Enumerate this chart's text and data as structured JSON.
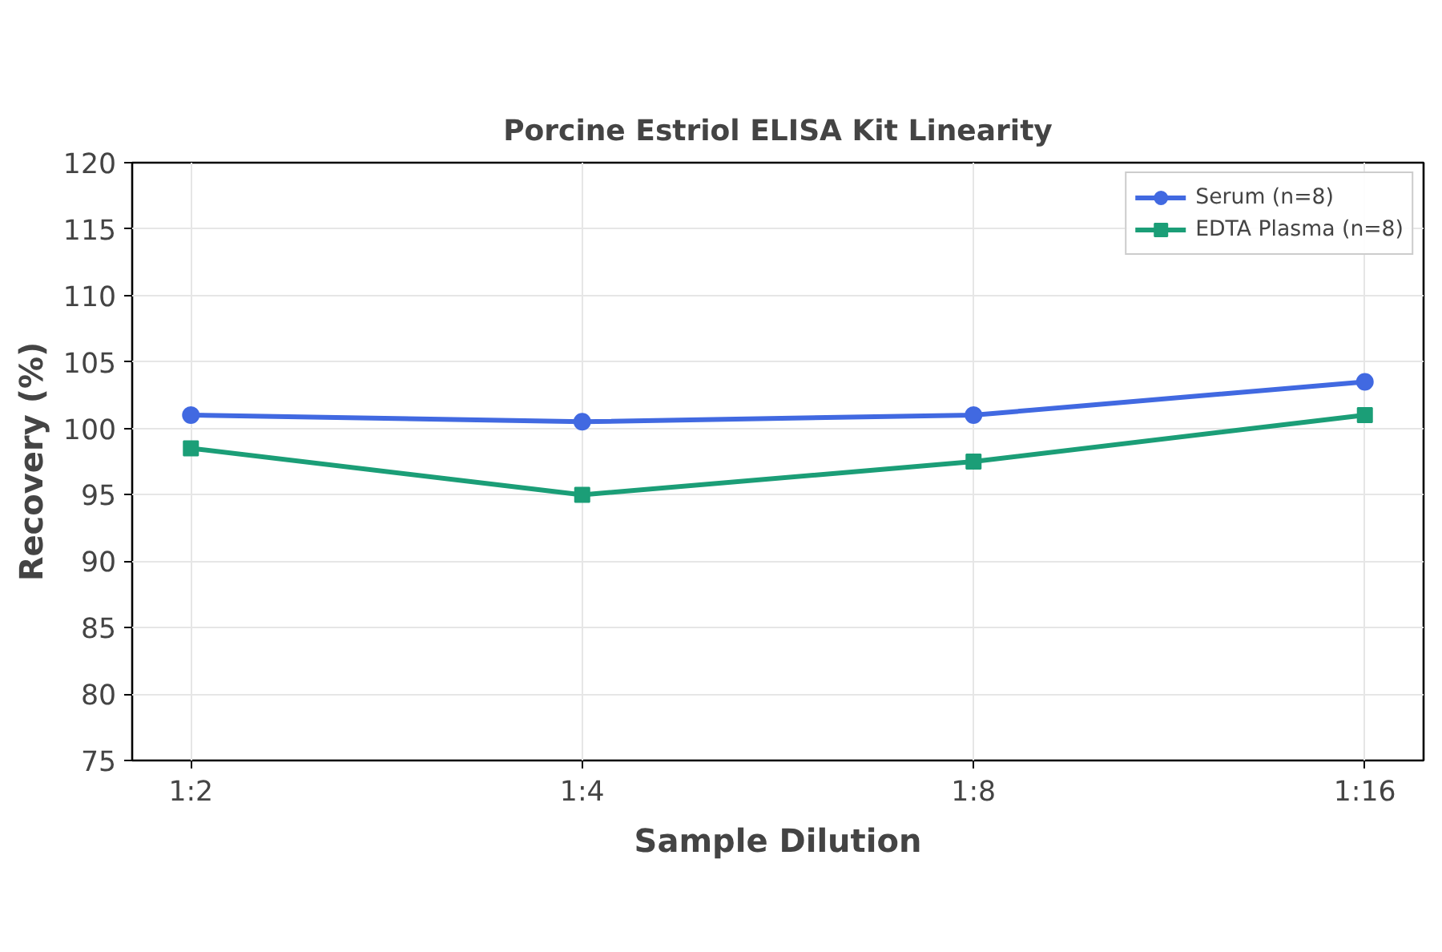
{
  "chart_data": {
    "type": "line",
    "title": "Porcine Estriol ELISA Kit Linearity",
    "xlabel": "Sample Dilution",
    "ylabel": "Recovery (%)",
    "categories": [
      "1:2",
      "1:4",
      "1:8",
      "1:16"
    ],
    "series": [
      {
        "name": "Serum (n=8)",
        "color": "#4169e1",
        "marker": "circle",
        "values": [
          101,
          100.5,
          101,
          103.5
        ]
      },
      {
        "name": "EDTA Plasma (n=8)",
        "color": "#1b9e77",
        "marker": "square",
        "values": [
          98.5,
          95,
          97.5,
          101
        ]
      }
    ],
    "ylim": [
      75,
      120
    ],
    "yticks": [
      75,
      80,
      85,
      90,
      95,
      100,
      105,
      110,
      115,
      120
    ],
    "grid": true,
    "legend": "top right",
    "line_style": "solid"
  }
}
